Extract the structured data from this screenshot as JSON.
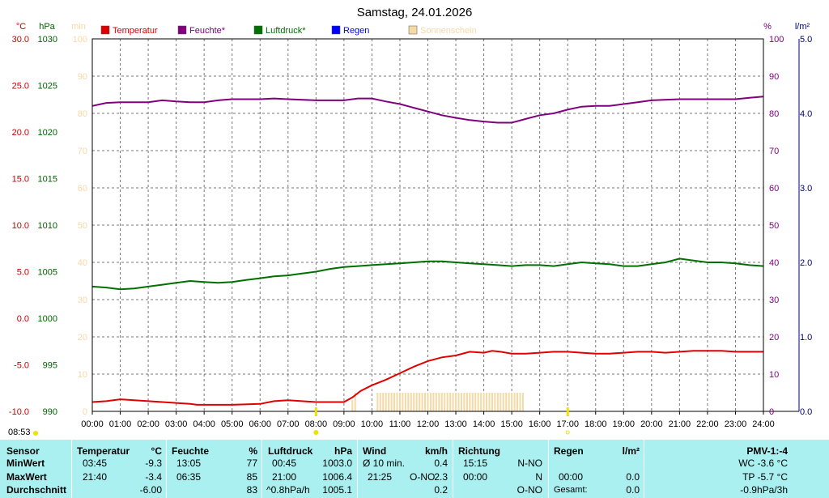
{
  "chart_data": {
    "type": "line",
    "title": "Samstag, 24.01.2026",
    "axes": {
      "temp": {
        "unit": "°C",
        "min": -10,
        "max": 30,
        "ticks": [
          "30.0",
          "25.0",
          "20.0",
          "15.0",
          "10.0",
          "5.0",
          "0.0",
          "-5.0",
          "-10.0"
        ],
        "color": "#d00000"
      },
      "pressure": {
        "unit": "hPa",
        "min": 990,
        "max": 1030,
        "ticks": [
          "1030",
          "1025",
          "1020",
          "1015",
          "1010",
          "1005",
          "1000",
          "995",
          "990"
        ],
        "color": "#006400"
      },
      "sun": {
        "unit": "min",
        "min": 0,
        "max": 100,
        "ticks": [
          "100",
          "90",
          "80",
          "70",
          "60",
          "50",
          "40",
          "30",
          "20",
          "10",
          "0"
        ],
        "color": "#f5d9a6"
      },
      "humidity": {
        "unit": "%",
        "min": 0,
        "max": 100,
        "ticks": [
          "100",
          "90",
          "80",
          "70",
          "60",
          "50",
          "40",
          "30",
          "20",
          "10",
          "0"
        ],
        "color": "#800080"
      },
      "rain": {
        "unit": "l/m²",
        "min": 0,
        "max": 5,
        "ticks": [
          "5.0",
          "4.0",
          "3.0",
          "2.0",
          "1.0",
          "0.0"
        ],
        "color": "#000080"
      }
    },
    "x_labels": [
      "00:00",
      "01:00",
      "02:00",
      "03:00",
      "04:00",
      "05:00",
      "06:00",
      "07:00",
      "08:00",
      "09:00",
      "10:00",
      "11:00",
      "12:00",
      "13:00",
      "14:00",
      "15:00",
      "16:00",
      "17:00",
      "18:00",
      "19:00",
      "20:00",
      "21:00",
      "22:00",
      "23:00",
      "24:00"
    ],
    "grid": true,
    "legend_position": "top",
    "series": [
      {
        "name": "Temperatur",
        "color": "#e00000",
        "axis": "temp",
        "x": [
          0,
          0.5,
          1,
          1.5,
          2,
          2.5,
          3,
          3.5,
          3.75,
          4,
          5,
          6,
          6.5,
          7,
          7.5,
          8,
          8.5,
          9,
          9.3,
          9.6,
          10,
          10.5,
          11,
          11.5,
          12,
          12.5,
          13,
          13.5,
          14,
          14.3,
          14.6,
          15,
          15.5,
          16,
          16.5,
          17,
          17.5,
          18,
          18.5,
          19,
          19.5,
          20,
          20.5,
          21,
          21.5,
          22,
          22.5,
          23,
          23.5,
          24
        ],
        "y": [
          -9.0,
          -8.9,
          -8.7,
          -8.8,
          -8.9,
          -9.0,
          -9.1,
          -9.2,
          -9.3,
          -9.3,
          -9.3,
          -9.2,
          -8.9,
          -8.8,
          -8.9,
          -9.0,
          -9.0,
          -9.0,
          -8.5,
          -7.8,
          -7.2,
          -6.6,
          -5.9,
          -5.2,
          -4.6,
          -4.2,
          -4.0,
          -3.6,
          -3.7,
          -3.5,
          -3.6,
          -3.8,
          -3.8,
          -3.7,
          -3.6,
          -3.6,
          -3.7,
          -3.8,
          -3.8,
          -3.7,
          -3.6,
          -3.6,
          -3.7,
          -3.6,
          -3.5,
          -3.5,
          -3.5,
          -3.6,
          -3.6,
          -3.6
        ]
      },
      {
        "name": "Feuchte*",
        "color": "#800080",
        "axis": "humidity",
        "x": [
          0,
          0.5,
          1,
          1.5,
          2,
          2.5,
          3,
          3.5,
          4,
          4.5,
          5,
          6,
          6.5,
          7,
          8,
          9,
          9.5,
          10,
          10.5,
          11,
          11.5,
          12,
          12.5,
          13,
          13.5,
          14,
          14.5,
          15,
          15.5,
          16,
          16.5,
          17,
          17.5,
          18,
          18.5,
          19,
          19.5,
          20,
          21,
          22,
          23,
          23.5,
          24
        ],
        "y": [
          82,
          82.8,
          83,
          83,
          83,
          83.5,
          83.2,
          83,
          83,
          83.5,
          83.8,
          83.8,
          84,
          83.8,
          83.5,
          83.5,
          84,
          84,
          83.2,
          82.5,
          81.5,
          80.5,
          79.5,
          78.8,
          78.2,
          77.8,
          77.5,
          77.5,
          78.5,
          79.5,
          80,
          81,
          81.8,
          82,
          82,
          82.5,
          83,
          83.5,
          83.8,
          83.8,
          83.8,
          84.2,
          84.5
        ]
      },
      {
        "name": "Luftdruck*",
        "color": "#007000",
        "axis": "pressure",
        "x": [
          0,
          0.5,
          1,
          1.5,
          2,
          2.5,
          3,
          3.5,
          4,
          4.5,
          5,
          5.5,
          6,
          6.5,
          7,
          7.5,
          8,
          8.5,
          9,
          9.5,
          10,
          10.5,
          11,
          11.5,
          12,
          12.5,
          13,
          13.5,
          14,
          14.5,
          15,
          15.5,
          16,
          16.5,
          17,
          17.5,
          18,
          18.5,
          19,
          19.5,
          20,
          20.5,
          21,
          21.5,
          22,
          22.5,
          23,
          23.5,
          24
        ],
        "y": [
          1003.4,
          1003.3,
          1003.1,
          1003.2,
          1003.4,
          1003.6,
          1003.8,
          1004.0,
          1003.9,
          1003.8,
          1003.9,
          1004.1,
          1004.3,
          1004.5,
          1004.6,
          1004.8,
          1005.0,
          1005.3,
          1005.5,
          1005.6,
          1005.7,
          1005.8,
          1005.9,
          1006.0,
          1006.1,
          1006.1,
          1006.0,
          1005.9,
          1005.8,
          1005.7,
          1005.6,
          1005.7,
          1005.7,
          1005.6,
          1005.8,
          1006.0,
          1005.9,
          1005.8,
          1005.6,
          1005.6,
          1005.8,
          1006.0,
          1006.4,
          1006.2,
          1006.0,
          1006.0,
          1005.9,
          1005.7,
          1005.6
        ]
      },
      {
        "name": "Regen",
        "color": "#0000ff",
        "axis": "rain",
        "x": [],
        "y": []
      },
      {
        "name": "Sonnenschein",
        "color": "#f5d9a6",
        "axis": "sun",
        "type": "bar",
        "x": [
          9.3,
          9.4,
          10.2,
          10.3,
          10.4,
          10.5,
          10.6,
          10.7,
          10.8,
          10.9,
          11.0,
          11.1,
          11.2,
          11.3,
          11.4,
          11.5,
          11.6,
          11.7,
          11.8,
          11.9,
          12.0,
          12.1,
          12.2,
          12.3,
          12.4,
          12.5,
          12.6,
          12.7,
          12.8,
          12.9,
          13.0,
          13.1,
          13.2,
          13.3,
          13.4,
          13.5,
          13.6,
          13.7,
          13.8,
          13.9,
          14.0,
          14.1,
          14.2,
          14.3,
          14.4,
          14.5,
          14.6,
          14.7,
          14.8,
          14.9,
          15.0,
          15.1,
          15.2,
          15.3,
          15.4
        ],
        "y": [
          3,
          5,
          5,
          5,
          5,
          5,
          5,
          5,
          5,
          5,
          5,
          5,
          5,
          5,
          5,
          5,
          5,
          5,
          5,
          5,
          5,
          5,
          5,
          5,
          5,
          5,
          5,
          5,
          5,
          5,
          5,
          5,
          5,
          5,
          5,
          5,
          5,
          5,
          5,
          5,
          5,
          5,
          5,
          5,
          5,
          5,
          5,
          5,
          5,
          5,
          5,
          5,
          5,
          5,
          5
        ]
      }
    ],
    "sun_markers": {
      "sunrise_hour": 8.0,
      "sunset_hour": 17.0,
      "color": "#f2e000"
    }
  },
  "current_time": "08:53",
  "table": {
    "sensor": {
      "header": "Sensor",
      "rows": [
        "MinWert",
        "MaxWert",
        "Durchschnitt"
      ]
    },
    "temperatur": {
      "header": "Temperatur",
      "unit": "°C",
      "min_time": "03:45",
      "min": "-9.3",
      "max_time": "21:40",
      "max": "-3.4",
      "avg": "-6.00"
    },
    "feuchte": {
      "header": "Feuchte",
      "unit": "%",
      "min_time": "13:05",
      "min": "77",
      "max_time": "06:35",
      "max": "85",
      "avg": "83"
    },
    "luftdruck": {
      "header": "Luftdruck",
      "unit": "hPa",
      "min_time": "00:45",
      "min": "1003.0",
      "max_time": "21:00",
      "max": "1006.4",
      "avg_label": "^0.8hPa/h",
      "avg": "1005.1"
    },
    "wind": {
      "header": "Wind",
      "unit": "km/h",
      "min_label": "Ø 10 min.",
      "min": "0.4",
      "max_time": "21:25",
      "max_dir": "O-NO",
      "max": "2.3",
      "avg": "0.2"
    },
    "richtung": {
      "header": "Richtung",
      "min_time": "15:15",
      "min": "N-NO",
      "max_time": "00:00",
      "max": "N",
      "avg": "O-NO"
    },
    "regen": {
      "header": "Regen",
      "unit": "l/m²",
      "max_time": "00:00",
      "max": "0.0",
      "total_label": "Gesamt:",
      "total": "0.0"
    },
    "pmv": {
      "header": "PMV-1:-4",
      "line1": "WC -3.6 °C",
      "line2": "TP -5.7 °C",
      "line3": "-0.9hPa/3h"
    }
  }
}
